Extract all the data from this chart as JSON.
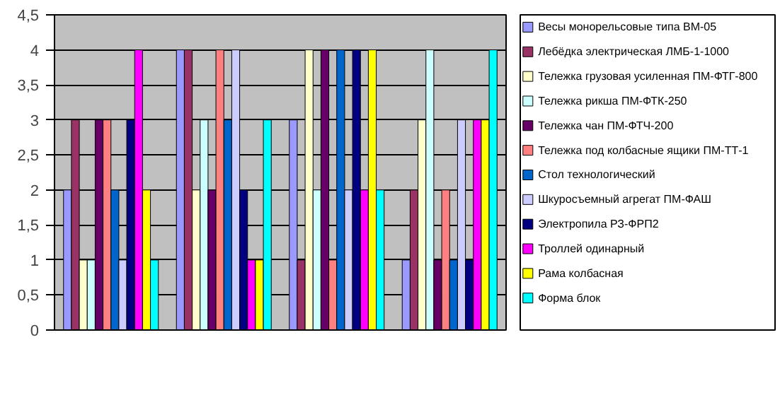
{
  "chart_data": {
    "type": "bar",
    "categories": [
      null,
      null,
      null,
      null
    ],
    "series": [
      {
        "name": "Весы монорельсовые типа ВМ-05",
        "color": "#9999ff",
        "values": [
          2,
          4,
          3,
          1
        ]
      },
      {
        "name": "Лебёдка электрическая ЛМБ-1-1000",
        "color": "#993366",
        "values": [
          3,
          4,
          1,
          2
        ]
      },
      {
        "name": "Тележка грузовая усиленная ПМ-ФТГ-800",
        "color": "#ffffcc",
        "values": [
          1,
          2,
          4,
          3
        ]
      },
      {
        "name": "Тележка рикша ПМ-ФТК-250",
        "color": "#ccffff",
        "values": [
          1,
          3,
          2,
          4
        ]
      },
      {
        "name": "Тележка чан   ПМ-ФТЧ-200",
        "color": "#660066",
        "values": [
          3,
          2,
          4,
          1
        ]
      },
      {
        "name": "Тележка под колбасные ящики ПМ-ТТ-1",
        "color": "#ff8080",
        "values": [
          3,
          4,
          1,
          2
        ]
      },
      {
        "name": "Стол технологический",
        "color": "#0066cc",
        "values": [
          2,
          3,
          4,
          1
        ]
      },
      {
        "name": "Шкуросъемный агрегат ПМ-ФАШ",
        "color": "#ccccff",
        "values": [
          1,
          4,
          2,
          3
        ]
      },
      {
        "name": "Электропила РЗ-ФРП2",
        "color": "#000080",
        "values": [
          3,
          2,
          4,
          1
        ]
      },
      {
        "name": "Троллей одинарный",
        "color": "#ff00ff",
        "values": [
          4,
          1,
          2,
          3
        ]
      },
      {
        "name": "Рама колбасная",
        "color": "#ffff00",
        "values": [
          2,
          1,
          4,
          3
        ]
      },
      {
        "name": "Форма блок",
        "color": "#00ffff",
        "values": [
          1,
          3,
          2,
          4
        ]
      }
    ],
    "ylim": [
      0,
      4.5
    ],
    "yticks": [
      {
        "value": 0,
        "label": "0"
      },
      {
        "value": 0.5,
        "label": "0,5"
      },
      {
        "value": 1,
        "label": "1"
      },
      {
        "value": 1.5,
        "label": "1,5"
      },
      {
        "value": 2,
        "label": "2"
      },
      {
        "value": 2.5,
        "label": "2,5"
      },
      {
        "value": 3,
        "label": "3"
      },
      {
        "value": 3.5,
        "label": "3,5"
      },
      {
        "value": 4,
        "label": "4"
      },
      {
        "value": 4.5,
        "label": "4,5"
      }
    ],
    "grid": "y",
    "legend": "right"
  }
}
